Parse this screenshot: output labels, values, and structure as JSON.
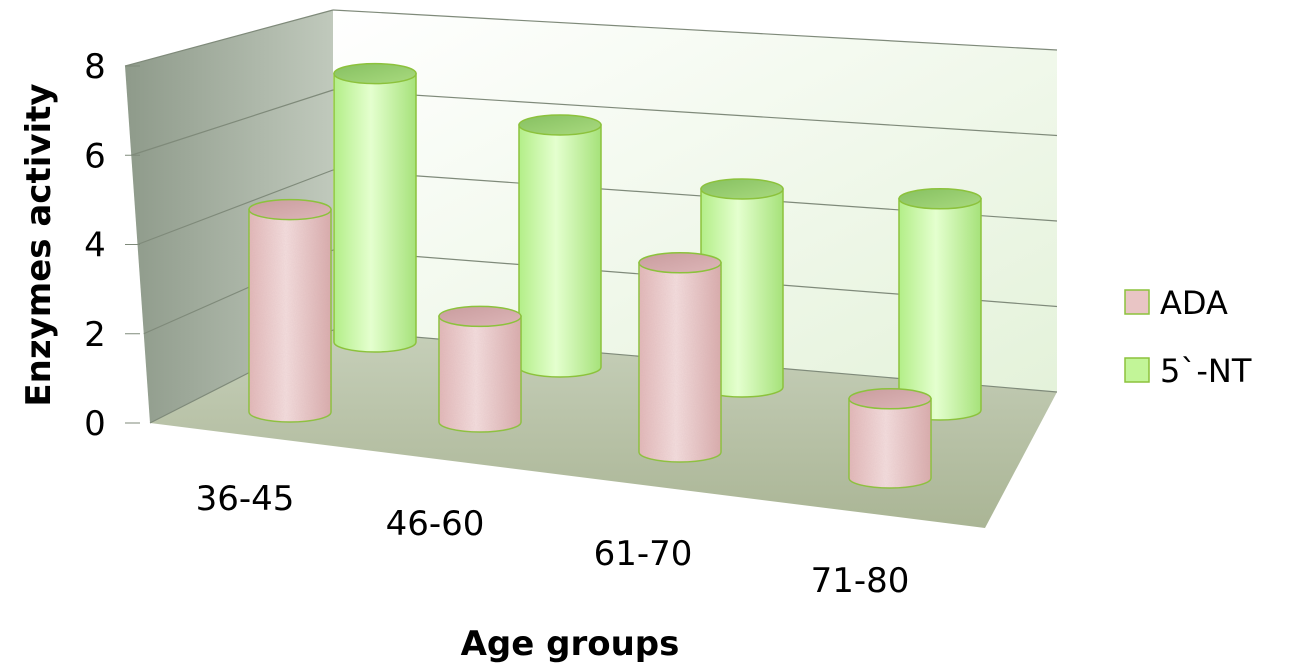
{
  "chart_data": {
    "type": "bar",
    "style": "3d-cylinder",
    "categories": [
      "36-45",
      "46-60",
      "61-70",
      "71-80"
    ],
    "series": [
      {
        "name": "ADA",
        "values": [
          4.6,
          2.4,
          4.3,
          1.8
        ],
        "color": "#e9c5c5"
      },
      {
        "name": "5`-NT",
        "values": [
          6.1,
          5.5,
          4.5,
          4.8
        ],
        "color": "#c2f598"
      }
    ],
    "xlabel": "Age groups",
    "ylabel": "Enzymes activity",
    "ylim": [
      0,
      8
    ],
    "yticks": [
      0,
      2,
      4,
      6,
      8
    ],
    "grid": true,
    "legend": "right",
    "colors": {
      "back_wall": "#eef8e8",
      "side_wall": "#9aa697",
      "floor": "#b8c2a8",
      "gridline": "#7f8a7a",
      "bar_edge": "#8cc23c"
    }
  }
}
